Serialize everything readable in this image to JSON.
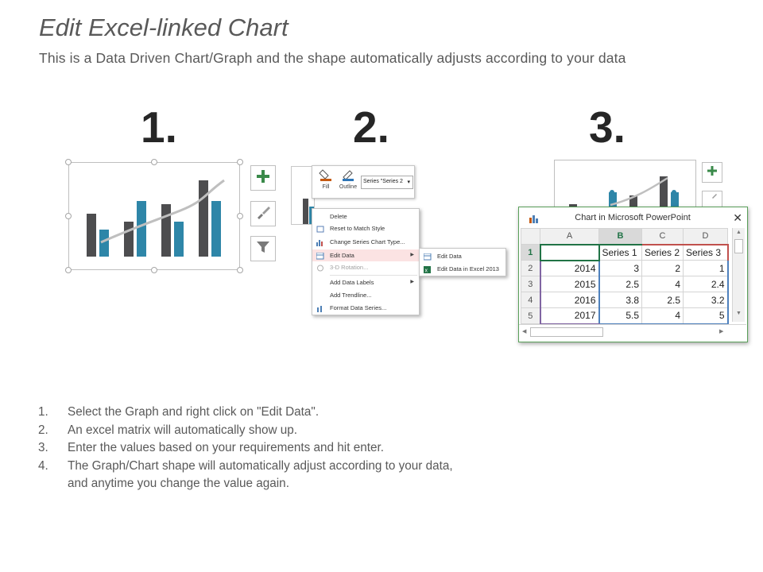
{
  "title": "Edit Excel-linked Chart",
  "subtitle": "This is a Data Driven Chart/Graph and the shape automatically adjusts according to your data",
  "step_numbers": [
    "1.",
    "2.",
    "3."
  ],
  "colors": {
    "dark_bar": "#4d4d4f",
    "blue_bar": "#2e86a8",
    "trend": "#bfbfbf",
    "excel_green": "#217346"
  },
  "panel1_icons": [
    "plus-icon",
    "paintbrush-icon",
    "filter-icon"
  ],
  "toolbar": {
    "fill_label": "Fill",
    "outline_label": "Outline",
    "series_value": "Series \"Series 2"
  },
  "context_menu": {
    "items": [
      "Delete",
      "Reset to Match Style",
      "Change Series Chart Type...",
      "Edit Data",
      "3-D Rotation...",
      "Add Data Labels",
      "Add Trendline...",
      "Format Data Series..."
    ]
  },
  "sub_menu": {
    "items": [
      "Edit Data",
      "Edit Data in Excel 2013"
    ]
  },
  "excel": {
    "title": "Chart in Microsoft PowerPoint",
    "columns": [
      "A",
      "B",
      "C",
      "D"
    ],
    "row_numbers": [
      "1",
      "2",
      "3",
      "4",
      "5"
    ],
    "header_row": [
      "",
      "Series 1",
      "Series 2",
      "Series 3"
    ],
    "rows": [
      [
        "2014",
        "3",
        "2",
        "1"
      ],
      [
        "2015",
        "2.5",
        "4",
        "2.4"
      ],
      [
        "2016",
        "3.8",
        "2.5",
        "3.2"
      ],
      [
        "2017",
        "5.5",
        "4",
        "5"
      ]
    ]
  },
  "steps": [
    {
      "n": "1.",
      "text": "Select the Graph and right click on \"Edit Data\"."
    },
    {
      "n": "2.",
      "text": "An excel matrix will automatically show up."
    },
    {
      "n": "3.",
      "text": "Enter the values based on your requirements and hit enter."
    },
    {
      "n": "4.",
      "text": "The Graph/Chart shape will automatically adjust according to your data,"
    },
    {
      "n": "",
      "text": "and anytime you change the value again."
    }
  ]
}
